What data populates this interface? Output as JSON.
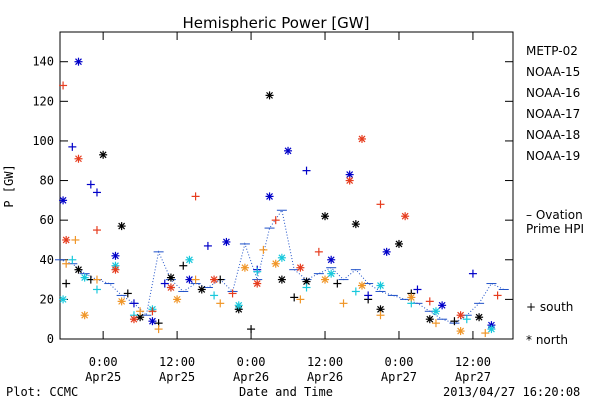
{
  "chart_data": {
    "type": "scatter",
    "title": "Hemispheric Power [GW]",
    "xlabel": "Date and Time",
    "ylabel": "P [GW]",
    "ylim": [
      0,
      155
    ],
    "xlim": [
      "2013-04-24 17:00",
      "2013-04-27 18:30"
    ],
    "y_ticks": [
      0,
      20,
      40,
      60,
      80,
      100,
      120,
      140
    ],
    "x_ticks": [
      {
        "time": "2013-04-25 00:00",
        "label1": "0:00",
        "label2": "Apr25"
      },
      {
        "time": "2013-04-25 12:00",
        "label1": "12:00",
        "label2": "Apr25"
      },
      {
        "time": "2013-04-26 00:00",
        "label1": "0:00",
        "label2": "Apr26"
      },
      {
        "time": "2013-04-26 12:00",
        "label1": "12:00",
        "label2": "Apr26"
      },
      {
        "time": "2013-04-27 00:00",
        "label1": "0:00",
        "label2": "Apr27"
      },
      {
        "time": "2013-04-27 12:00",
        "label1": "12:00",
        "label2": "Apr27"
      }
    ],
    "legend_position": "right",
    "symbol_legend": {
      "south": "+ south",
      "north": "* north"
    },
    "series": [
      {
        "name": "METP-02",
        "color": "#000000",
        "points": [
          [
            "2013-04-24 18:00",
            28,
            "s"
          ],
          [
            "2013-04-24 20:00",
            35,
            "n"
          ],
          [
            "2013-04-24 22:00",
            30,
            "s"
          ],
          [
            "2013-04-25 00:00",
            93,
            "n"
          ],
          [
            "2013-04-25 03:00",
            57,
            "n"
          ],
          [
            "2013-04-25 04:00",
            23,
            "s"
          ],
          [
            "2013-04-25 06:00",
            11,
            "n"
          ],
          [
            "2013-04-25 09:00",
            8,
            "s"
          ],
          [
            "2013-04-25 11:00",
            31,
            "n"
          ],
          [
            "2013-04-25 13:00",
            37,
            "s"
          ],
          [
            "2013-04-25 16:00",
            25,
            "n"
          ],
          [
            "2013-04-25 19:00",
            30,
            "s"
          ],
          [
            "2013-04-25 22:00",
            15,
            "n"
          ],
          [
            "2013-04-26 00:00",
            5,
            "s"
          ],
          [
            "2013-04-26 03:00",
            123,
            "n"
          ],
          [
            "2013-04-26 05:00",
            30,
            "n"
          ],
          [
            "2013-04-26 07:00",
            21,
            "s"
          ],
          [
            "2013-04-26 09:00",
            29,
            "n"
          ],
          [
            "2013-04-26 12:00",
            62,
            "n"
          ],
          [
            "2013-04-26 14:00",
            28,
            "s"
          ],
          [
            "2013-04-26 17:00",
            58,
            "n"
          ],
          [
            "2013-04-26 19:00",
            20,
            "s"
          ],
          [
            "2013-04-26 21:00",
            15,
            "n"
          ],
          [
            "2013-04-27 00:00",
            48,
            "n"
          ],
          [
            "2013-04-27 02:00",
            23,
            "s"
          ],
          [
            "2013-04-27 05:00",
            10,
            "n"
          ],
          [
            "2013-04-27 09:00",
            9,
            "s"
          ],
          [
            "2013-04-27 13:00",
            11,
            "n"
          ]
        ]
      },
      {
        "name": "NOAA-15",
        "color": "#0000c8",
        "points": [
          [
            "2013-04-24 17:30",
            70,
            "n"
          ],
          [
            "2013-04-24 19:00",
            97,
            "s"
          ],
          [
            "2013-04-24 20:00",
            140,
            "n"
          ],
          [
            "2013-04-24 22:00",
            78,
            "s"
          ],
          [
            "2013-04-24 23:00",
            74,
            "s"
          ],
          [
            "2013-04-25 02:00",
            42,
            "n"
          ],
          [
            "2013-04-25 05:00",
            18,
            "s"
          ],
          [
            "2013-04-25 08:00",
            9,
            "n"
          ],
          [
            "2013-04-25 10:00",
            28,
            "s"
          ],
          [
            "2013-04-25 14:00",
            30,
            "n"
          ],
          [
            "2013-04-25 17:00",
            47,
            "s"
          ],
          [
            "2013-04-25 20:00",
            49,
            "n"
          ],
          [
            "2013-04-26 01:00",
            35,
            "s"
          ],
          [
            "2013-04-26 03:00",
            72,
            "n"
          ],
          [
            "2013-04-26 06:00",
            95,
            "n"
          ],
          [
            "2013-04-26 09:00",
            85,
            "s"
          ],
          [
            "2013-04-26 13:00",
            40,
            "n"
          ],
          [
            "2013-04-26 16:00",
            83,
            "n"
          ],
          [
            "2013-04-26 19:00",
            22,
            "s"
          ],
          [
            "2013-04-26 22:00",
            44,
            "n"
          ],
          [
            "2013-04-27 03:00",
            25,
            "s"
          ],
          [
            "2013-04-27 07:00",
            17,
            "n"
          ],
          [
            "2013-04-27 12:00",
            33,
            "s"
          ],
          [
            "2013-04-27 15:00",
            7,
            "n"
          ]
        ]
      },
      {
        "name": "NOAA-16",
        "color": "#18c8dc",
        "points": [
          [
            "2013-04-24 17:30",
            20,
            "n"
          ],
          [
            "2013-04-24 19:00",
            40,
            "s"
          ],
          [
            "2013-04-24 21:00",
            31,
            "n"
          ],
          [
            "2013-04-24 23:00",
            25,
            "s"
          ],
          [
            "2013-04-25 02:00",
            37,
            "n"
          ],
          [
            "2013-04-25 05:00",
            12,
            "s"
          ],
          [
            "2013-04-25 08:00",
            15,
            "n"
          ],
          [
            "2013-04-25 11:00",
            26,
            "s"
          ],
          [
            "2013-04-25 14:00",
            40,
            "n"
          ],
          [
            "2013-04-25 18:00",
            22,
            "s"
          ],
          [
            "2013-04-25 22:00",
            17,
            "n"
          ],
          [
            "2013-04-26 01:00",
            34,
            "s"
          ],
          [
            "2013-04-26 05:00",
            41,
            "n"
          ],
          [
            "2013-04-26 09:00",
            26,
            "s"
          ],
          [
            "2013-04-26 13:00",
            33,
            "n"
          ],
          [
            "2013-04-26 17:00",
            24,
            "s"
          ],
          [
            "2013-04-26 21:00",
            27,
            "n"
          ],
          [
            "2013-04-27 02:00",
            18,
            "s"
          ],
          [
            "2013-04-27 06:00",
            14,
            "n"
          ],
          [
            "2013-04-27 11:00",
            10,
            "s"
          ],
          [
            "2013-04-27 15:00",
            5,
            "n"
          ]
        ]
      },
      {
        "name": "NOAA-17",
        "color": "#28dc78",
        "points": []
      },
      {
        "name": "NOAA-18",
        "color": "#f09628",
        "points": [
          [
            "2013-04-24 18:00",
            38,
            "s"
          ],
          [
            "2013-04-24 19:30",
            50,
            "s"
          ],
          [
            "2013-04-24 21:00",
            12,
            "n"
          ],
          [
            "2013-04-24 23:00",
            30,
            "s"
          ],
          [
            "2013-04-25 03:00",
            19,
            "n"
          ],
          [
            "2013-04-25 06:00",
            14,
            "s"
          ],
          [
            "2013-04-25 09:00",
            5,
            "s"
          ],
          [
            "2013-04-25 12:00",
            20,
            "n"
          ],
          [
            "2013-04-25 15:00",
            30,
            "s"
          ],
          [
            "2013-04-25 19:00",
            18,
            "s"
          ],
          [
            "2013-04-25 23:00",
            36,
            "n"
          ],
          [
            "2013-04-26 02:00",
            45,
            "s"
          ],
          [
            "2013-04-26 04:00",
            38,
            "n"
          ],
          [
            "2013-04-26 08:00",
            20,
            "s"
          ],
          [
            "2013-04-26 12:00",
            30,
            "n"
          ],
          [
            "2013-04-26 15:00",
            18,
            "s"
          ],
          [
            "2013-04-26 18:00",
            27,
            "n"
          ],
          [
            "2013-04-26 21:00",
            12,
            "s"
          ],
          [
            "2013-04-27 02:00",
            21,
            "n"
          ],
          [
            "2013-04-27 06:00",
            8,
            "s"
          ],
          [
            "2013-04-27 10:00",
            4,
            "n"
          ],
          [
            "2013-04-27 14:00",
            3,
            "s"
          ]
        ]
      },
      {
        "name": "NOAA-19",
        "color": "#e63c1e",
        "points": [
          [
            "2013-04-24 17:30",
            128,
            "s"
          ],
          [
            "2013-04-24 18:00",
            50,
            "n"
          ],
          [
            "2013-04-24 20:00",
            91,
            "n"
          ],
          [
            "2013-04-24 23:00",
            55,
            "s"
          ],
          [
            "2013-04-25 02:00",
            35,
            "n"
          ],
          [
            "2013-04-25 05:00",
            10,
            "n"
          ],
          [
            "2013-04-25 08:00",
            14,
            "s"
          ],
          [
            "2013-04-25 11:00",
            26,
            "n"
          ],
          [
            "2013-04-25 15:00",
            72,
            "s"
          ],
          [
            "2013-04-25 18:00",
            30,
            "n"
          ],
          [
            "2013-04-25 21:00",
            23,
            "s"
          ],
          [
            "2013-04-26 01:00",
            28,
            "n"
          ],
          [
            "2013-04-26 04:00",
            60,
            "s"
          ],
          [
            "2013-04-26 08:00",
            36,
            "n"
          ],
          [
            "2013-04-26 11:00",
            44,
            "s"
          ],
          [
            "2013-04-26 16:00",
            80,
            "n"
          ],
          [
            "2013-04-26 18:00",
            101,
            "n"
          ],
          [
            "2013-04-26 21:00",
            68,
            "s"
          ],
          [
            "2013-04-27 01:00",
            62,
            "n"
          ],
          [
            "2013-04-27 05:00",
            19,
            "s"
          ],
          [
            "2013-04-27 10:00",
            12,
            "n"
          ],
          [
            "2013-04-27 16:00",
            22,
            "s"
          ]
        ]
      }
    ],
    "ovation": {
      "name": "Ovation Prime HPI",
      "legend_line1": "– Ovation",
      "legend_line2": "Prime HPI",
      "color": "#1e50c8",
      "values": [
        [
          "2013-04-24 17:00",
          40
        ],
        [
          "2013-04-24 19:00",
          38
        ],
        [
          "2013-04-24 21:00",
          33
        ],
        [
          "2013-04-24 23:00",
          30
        ],
        [
          "2013-04-25 01:00",
          28
        ],
        [
          "2013-04-25 03:00",
          22
        ],
        [
          "2013-04-25 05:00",
          18
        ],
        [
          "2013-04-25 07:00",
          12
        ],
        [
          "2013-04-25 09:00",
          44
        ],
        [
          "2013-04-25 11:00",
          30
        ],
        [
          "2013-04-25 13:00",
          24
        ],
        [
          "2013-04-25 15:00",
          28
        ],
        [
          "2013-04-25 17:00",
          26
        ],
        [
          "2013-04-25 19:00",
          30
        ],
        [
          "2013-04-25 21:00",
          24
        ],
        [
          "2013-04-25 23:00",
          48
        ],
        [
          "2013-04-26 01:00",
          30
        ],
        [
          "2013-04-26 03:00",
          56
        ],
        [
          "2013-04-26 05:00",
          65
        ],
        [
          "2013-04-26 07:00",
          35
        ],
        [
          "2013-04-26 09:00",
          30
        ],
        [
          "2013-04-26 11:00",
          33
        ],
        [
          "2013-04-26 13:00",
          36
        ],
        [
          "2013-04-26 15:00",
          30
        ],
        [
          "2013-04-26 17:00",
          35
        ],
        [
          "2013-04-26 19:00",
          28
        ],
        [
          "2013-04-26 21:00",
          24
        ],
        [
          "2013-04-26 23:00",
          22
        ],
        [
          "2013-04-27 01:00",
          20
        ],
        [
          "2013-04-27 03:00",
          18
        ],
        [
          "2013-04-27 05:00",
          14
        ],
        [
          "2013-04-27 07:00",
          10
        ],
        [
          "2013-04-27 09:00",
          8
        ],
        [
          "2013-04-27 11:00",
          12
        ],
        [
          "2013-04-27 13:00",
          18
        ],
        [
          "2013-04-27 15:00",
          28
        ],
        [
          "2013-04-27 17:00",
          25
        ]
      ]
    }
  },
  "footer": {
    "plot_credit": "Plot: CCMC",
    "timestamp": "2013/04/27 16:20:08"
  }
}
